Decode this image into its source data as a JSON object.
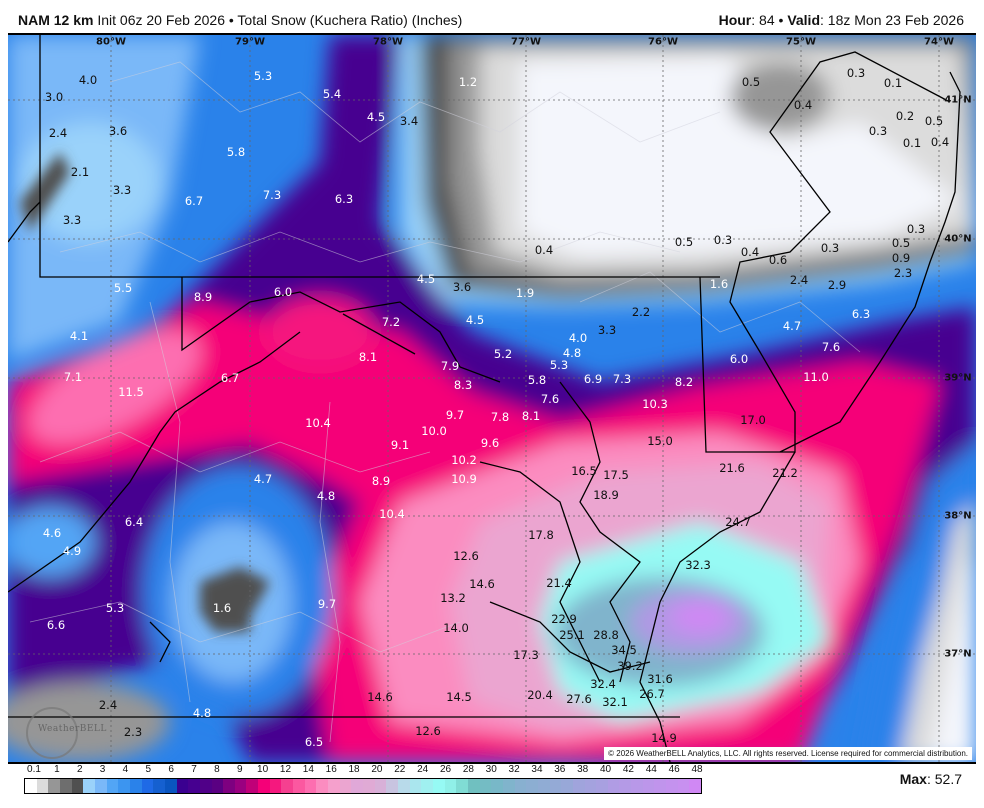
{
  "header": {
    "model": "NAM 12 km",
    "description": "Init 06z 20 Feb 2026 • Total Snow (Kuchera Ratio) (Inches)",
    "hour_label": "Hour",
    "hour_value": ": 84 • ",
    "valid_label": "Valid",
    "valid_value": ": 18z Mon 23 Feb 2026"
  },
  "map": {
    "longitude_labels": [
      "80°W",
      "79°W",
      "78°W",
      "77°W",
      "76°W",
      "75°W",
      "74°W"
    ],
    "latitude_labels": [
      "41°N",
      "40°N",
      "39°N",
      "38°N",
      "37°N"
    ],
    "value_labels": [
      "4.0",
      "3.0",
      "2.4",
      "3.6",
      "2.1",
      "3.3",
      "3.3",
      "5.3",
      "5.4",
      "4.5",
      "3.4",
      "5.8",
      "6.7",
      "7.3",
      "6.3",
      "1.2",
      "5.5",
      "8.9",
      "6.0",
      "4.5",
      "3.6",
      "7.2",
      "4.5",
      "4.1",
      "8.1",
      "7.9",
      "7.1",
      "11.5",
      "6.7",
      "8.3",
      "10.4",
      "9.7",
      "9.1",
      "10.0",
      "10.2",
      "10.9",
      "8.9",
      "4.7",
      "4.8",
      "10.4",
      "6.4",
      "4.6",
      "4.9",
      "12.6",
      "14.6",
      "13.2",
      "5.3",
      "1.6",
      "9.7",
      "6.6",
      "14.0",
      "2.4",
      "4.8",
      "2.3",
      "6.5",
      "14.6",
      "14.5",
      "12.6",
      "0.5",
      "0.3",
      "0.1",
      "0.4",
      "0.2",
      "0.5",
      "0.3",
      "0.1",
      "0.4",
      "0.3",
      "0.4",
      "0.5",
      "0.3",
      "0.4",
      "0.6",
      "0.3",
      "0.5",
      "0.9",
      "2.3",
      "2.4",
      "2.9",
      "1.6",
      "1.9",
      "2.2",
      "3.3",
      "4.0",
      "4.8",
      "5.2",
      "5.3",
      "4.7",
      "6.3",
      "7.6",
      "6.0",
      "11.0",
      "5.8",
      "6.9",
      "7.3",
      "8.2",
      "7.6",
      "8.1",
      "7.8",
      "10.3",
      "9.6",
      "15.0",
      "17.0",
      "21.6",
      "21.2",
      "16.5",
      "17.5",
      "18.9",
      "24.7",
      "17.8",
      "32.3",
      "21.4",
      "22.9",
      "25.1",
      "28.8",
      "34.5",
      "39.2",
      "17.3",
      "32.4",
      "31.6",
      "20.4",
      "27.6",
      "32.1",
      "26.7",
      "14.9"
    ],
    "copyright": "© 2026 WeatherBELL Analytics, LLC. All rights reserved. License required for commercial distribution.",
    "logo_text": "WeatherBELL"
  },
  "colorbar": {
    "ticks": [
      "0.1",
      "1",
      "2",
      "3",
      "4",
      "5",
      "6",
      "7",
      "8",
      "9",
      "10",
      "12",
      "14",
      "16",
      "18",
      "20",
      "22",
      "24",
      "26",
      "28",
      "30",
      "32",
      "34",
      "36",
      "38",
      "40",
      "42",
      "44",
      "46",
      "48"
    ],
    "colors": [
      "#ffffff",
      "#dcdcdc",
      "#969696",
      "#6e6e6e",
      "#505050",
      "#9ad2fa",
      "#7ab8f8",
      "#52a5f5",
      "#3c95f0",
      "#2a82ea",
      "#1f6ae6",
      "#1560d0",
      "#0a55c0",
      "#3a0090",
      "#460090",
      "#500088",
      "#5a0082",
      "#7e0080",
      "#9a0080",
      "#c00078",
      "#f50078",
      "#f5187e",
      "#f54090",
      "#fb58a0",
      "#fd6eb0",
      "#fb8cc0",
      "#f5a0cc",
      "#eba5d0",
      "#e0a8d8",
      "#e0aad5",
      "#d8b0d8",
      "#c8c4e0",
      "#b8daea",
      "#aae6ee",
      "#a0f0f0",
      "#96faf4",
      "#90f0e8",
      "#80dcd4",
      "#70c0c0",
      "#74bcc4",
      "#78b8c8",
      "#80b4cc",
      "#88b0d0",
      "#8caed2",
      "#90acd4",
      "#94aad6",
      "#98a8d8",
      "#a0a4dc",
      "#a4a2de",
      "#a8a0e0",
      "#b09ce4",
      "#b49ae6",
      "#b898e8",
      "#bc96ea",
      "#c094ec",
      "#c492ee",
      "#c890f0",
      "#d088f4"
    ]
  },
  "max": {
    "label": "Max",
    "value": ": 52.7"
  }
}
